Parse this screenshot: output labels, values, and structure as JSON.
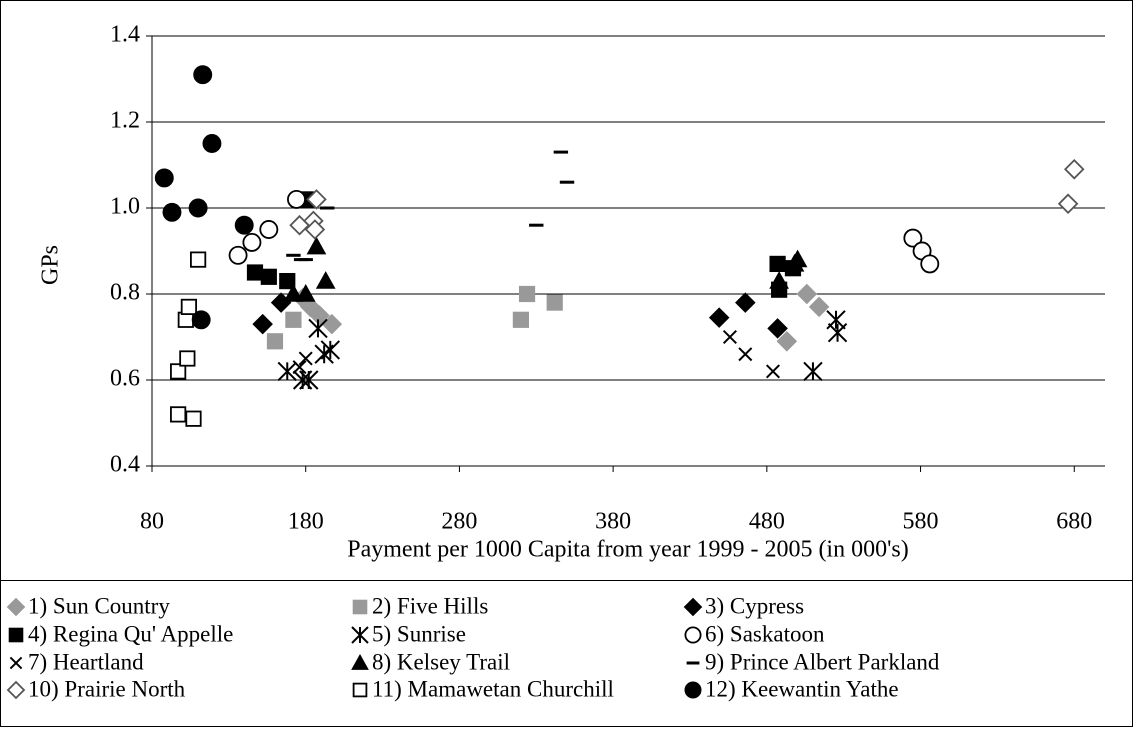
{
  "chart_data": {
    "type": "scatter",
    "x_label": "Payment per 1000 Capita from year 1999 - 2005 (in 000's)",
    "y_label": "GPs",
    "xlim": [
      80,
      700
    ],
    "ylim": [
      0.4,
      1.4
    ],
    "xticks": [
      80,
      180,
      280,
      380,
      480,
      580,
      680
    ],
    "yticks": [
      0.4,
      0.6,
      0.8,
      {
        "value": 1,
        "label": "1.0"
      },
      1.2,
      1.4
    ],
    "grid": true,
    "series": [
      {
        "name": "1) Sun Country",
        "color": "#999999",
        "marker": "diamond",
        "filled": true,
        "x": [
          178,
          183,
          189,
          197,
          506,
          493,
          514
        ],
        "values": [
          0.79,
          0.77,
          0.75,
          0.73,
          0.8,
          0.69,
          0.77
        ]
      },
      {
        "name": "2) Five Hills",
        "color": "#999999",
        "marker": "square",
        "filled": true,
        "x": [
          160,
          172,
          320,
          324,
          342
        ],
        "values": [
          0.69,
          0.74,
          0.74,
          0.8,
          0.78
        ]
      },
      {
        "name": "3) Cypress",
        "color": "#000000",
        "marker": "diamond",
        "filled": true,
        "x": [
          152,
          164,
          449,
          466,
          487
        ],
        "values": [
          0.73,
          0.78,
          0.745,
          0.78,
          0.72
        ]
      },
      {
        "name": "4) Regina Qu' Appelle",
        "color": "#000000",
        "marker": "square",
        "filled": true,
        "x": [
          147,
          156,
          168,
          180,
          487,
          488,
          497
        ],
        "values": [
          0.85,
          0.84,
          0.83,
          1.02,
          0.87,
          0.81,
          0.86
        ]
      },
      {
        "name": "5) Sunrise",
        "color": "#000000",
        "marker": "asterisk",
        "filled": false,
        "x": [
          168,
          178,
          182,
          188,
          192,
          196,
          510,
          525,
          526
        ],
        "values": [
          0.62,
          0.6,
          0.6,
          0.72,
          0.66,
          0.67,
          0.62,
          0.74,
          0.71
        ]
      },
      {
        "name": "6) Saskatoon",
        "color": "#000000",
        "marker": "circle",
        "filled": false,
        "x": [
          136,
          145,
          156,
          174,
          575,
          581,
          586
        ],
        "values": [
          0.89,
          0.92,
          0.95,
          1.02,
          0.93,
          0.9,
          0.87
        ]
      },
      {
        "name": "7) Heartland",
        "color": "#000000",
        "marker": "cross",
        "filled": false,
        "x": [
          176,
          180,
          456,
          466,
          484
        ],
        "values": [
          0.63,
          0.65,
          0.7,
          0.66,
          0.62
        ]
      },
      {
        "name": "8) Kelsey Trail",
        "color": "#000000",
        "marker": "triangle",
        "filled": true,
        "x": [
          172,
          180,
          187,
          193,
          488,
          498,
          500
        ],
        "values": [
          0.8,
          0.8,
          0.91,
          0.83,
          0.83,
          0.87,
          0.88
        ]
      },
      {
        "name": "9) Prince Albert Parkland",
        "color": "#000000",
        "marker": "dash",
        "filled": true,
        "x": [
          172,
          177,
          180,
          194,
          330,
          346,
          350
        ],
        "values": [
          0.89,
          0.88,
          0.88,
          1.0,
          0.96,
          1.13,
          1.06
        ]
      },
      {
        "name": "10) Prairie North",
        "color": "#555555",
        "marker": "diamond",
        "filled": false,
        "x": [
          176,
          185,
          186,
          187,
          676,
          680
        ],
        "values": [
          0.96,
          0.97,
          0.95,
          1.02,
          1.01,
          1.09
        ]
      },
      {
        "name": "11) Mamawetan Churchill",
        "color": "#000000",
        "marker": "square",
        "filled": false,
        "x": [
          97,
          97,
          102,
          103,
          104,
          107,
          110
        ],
        "values": [
          0.52,
          0.62,
          0.74,
          0.65,
          0.77,
          0.51,
          0.88
        ]
      },
      {
        "name": "12) Keewantin Yathe",
        "color": "#000000",
        "marker": "circle",
        "filled": true,
        "x": [
          88,
          93,
          110,
          112,
          113,
          119,
          140
        ],
        "values": [
          1.07,
          0.99,
          1.0,
          0.74,
          1.31,
          1.15,
          0.96
        ]
      }
    ]
  }
}
